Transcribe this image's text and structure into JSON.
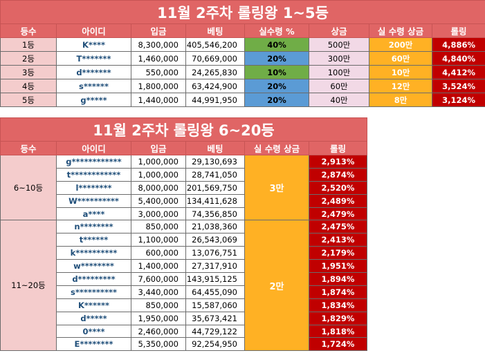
{
  "table1": {
    "title": "11월 2주차 롤링왕 1~5등",
    "headers": [
      "등수",
      "아이디",
      "입금",
      "베팅",
      "실수령 %",
      "상금",
      "실 수령 상금",
      "롤링"
    ],
    "rows": [
      {
        "rank": "1등",
        "id": "K****",
        "deposit": "8,300,000",
        "bet": "405,546,200",
        "pct": "40%",
        "prize": "500만",
        "net": "200만",
        "rolling": "4,886%"
      },
      {
        "rank": "2등",
        "id": "T*******",
        "deposit": "1,460,000",
        "bet": "70,669,000",
        "pct": "20%",
        "prize": "300만",
        "net": "60만",
        "rolling": "4,840%"
      },
      {
        "rank": "3등",
        "id": "d*******",
        "deposit": "550,000",
        "bet": "24,265,830",
        "pct": "10%",
        "prize": "100만",
        "net": "10만",
        "rolling": "4,412%"
      },
      {
        "rank": "4등",
        "id": "s******",
        "deposit": "1,800,000",
        "bet": "63,424,900",
        "pct": "20%",
        "prize": "60만",
        "net": "12만",
        "rolling": "3,524%"
      },
      {
        "rank": "5등",
        "id": "g*****",
        "deposit": "1,440,000",
        "bet": "44,991,950",
        "pct": "20%",
        "prize": "40만",
        "net": "8만",
        "rolling": "3,124%"
      }
    ]
  },
  "table2": {
    "title": "11월 2주차 롤링왕 6~20등",
    "headers": [
      "등수",
      "아이디",
      "입금",
      "베팅",
      "실 수령 상금",
      "롤링"
    ],
    "groups": [
      {
        "label": "6~10등",
        "prize": "3만"
      },
      {
        "label": "11~20등",
        "prize": "2만"
      }
    ],
    "rows": [
      {
        "id": "g************",
        "deposit": "1,000,000",
        "bet": "29,130,693",
        "rolling": "2,913%"
      },
      {
        "id": "t************",
        "deposit": "1,000,000",
        "bet": "28,741,050",
        "rolling": "2,874%"
      },
      {
        "id": "l********",
        "deposit": "8,000,000",
        "bet": "201,569,750",
        "rolling": "2,520%"
      },
      {
        "id": "W**********",
        "deposit": "5,400,000",
        "bet": "134,411,628",
        "rolling": "2,489%"
      },
      {
        "id": "a****",
        "deposit": "3,000,000",
        "bet": "74,356,850",
        "rolling": "2,479%"
      },
      {
        "id": "n********",
        "deposit": "850,000",
        "bet": "21,038,360",
        "rolling": "2,475%"
      },
      {
        "id": "t******",
        "deposit": "1,100,000",
        "bet": "26,543,069",
        "rolling": "2,413%"
      },
      {
        "id": "k**********",
        "deposit": "600,000",
        "bet": "13,076,751",
        "rolling": "2,179%"
      },
      {
        "id": "w********",
        "deposit": "1,400,000",
        "bet": "27,317,910",
        "rolling": "1,951%"
      },
      {
        "id": "d*********",
        "deposit": "7,600,000",
        "bet": "143,915,125",
        "rolling": "1,894%"
      },
      {
        "id": "s**********",
        "deposit": "3,440,000",
        "bet": "64,455,090",
        "rolling": "1,874%"
      },
      {
        "id": "K******",
        "deposit": "850,000",
        "bet": "15,587,060",
        "rolling": "1,834%"
      },
      {
        "id": "d*****",
        "deposit": "1,950,000",
        "bet": "35,673,421",
        "rolling": "1,829%"
      },
      {
        "id": "0****",
        "deposit": "2,460,000",
        "bet": "44,729,122",
        "rolling": "1,818%"
      },
      {
        "id": "E********",
        "deposit": "5,350,000",
        "bet": "92,254,950",
        "rolling": "1,724%"
      }
    ]
  },
  "colors": {
    "header": "#e06565",
    "rank_bg": "#f4cccc",
    "green": "#70ad47",
    "blue": "#5b9bd5",
    "pink": "#f2d9e6",
    "orange": "#ffb124",
    "red": "#c00000"
  }
}
